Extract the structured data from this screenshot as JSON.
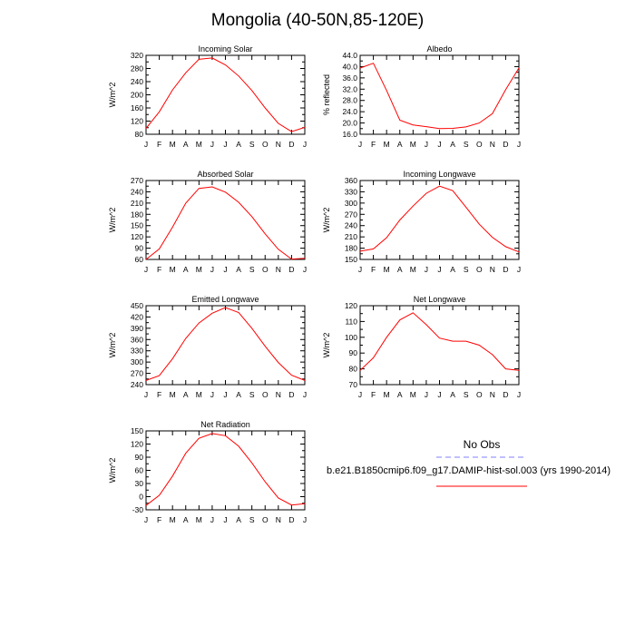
{
  "title": "Mongolia (40-50N,85-120E)",
  "months": [
    "J",
    "F",
    "M",
    "A",
    "M",
    "J",
    "J",
    "A",
    "S",
    "O",
    "N",
    "D",
    "J"
  ],
  "legend": {
    "obs_label": "No Obs",
    "run_label": "b.e21.B1850cmip6.f09_g17.DAMIP-hist-sol.003 (yrs 1990-2014)",
    "obs_color": "#8080ff",
    "run_color": "#ff0000"
  },
  "chart_data": [
    {
      "type": "line",
      "title": "Incoming Solar",
      "ylabel": "W/m^2",
      "ylim": [
        80,
        320
      ],
      "yticks": [
        "80",
        "120",
        "160",
        "200",
        "240",
        "280",
        "320"
      ],
      "series": [
        {
          "color": "#ff0000",
          "values": [
            98,
            148,
            215,
            267,
            308,
            312,
            291,
            257,
            213,
            160,
            113,
            88,
            101
          ]
        }
      ]
    },
    {
      "type": "line",
      "title": "Albedo",
      "ylabel": "% reflected",
      "ylim": [
        16,
        44
      ],
      "yticks": [
        "16.0",
        "20.0",
        "24.0",
        "28.0",
        "32.0",
        "36.0",
        "40.0",
        "44.0"
      ],
      "series": [
        {
          "color": "#ff0000",
          "values": [
            39.5,
            41.2,
            31.5,
            21.0,
            19.3,
            18.7,
            18.0,
            18.1,
            18.6,
            20.0,
            23.3,
            31.8,
            39.5
          ]
        }
      ]
    },
    {
      "type": "line",
      "title": "Absorbed Solar",
      "ylabel": "W/m^2",
      "ylim": [
        60,
        270
      ],
      "yticks": [
        "60",
        "90",
        "120",
        "150",
        "180",
        "210",
        "240",
        "270"
      ],
      "series": [
        {
          "color": "#ff0000",
          "values": [
            60,
            88,
            146,
            210,
            249,
            253,
            239,
            212,
            174,
            128,
            87,
            61,
            63
          ]
        }
      ]
    },
    {
      "type": "line",
      "title": "Incoming Longwave",
      "ylabel": "W/m^2",
      "ylim": [
        150,
        360
      ],
      "yticks": [
        "150",
        "180",
        "210",
        "240",
        "270",
        "300",
        "330",
        "360"
      ],
      "series": [
        {
          "color": "#ff0000",
          "values": [
            172,
            178,
            208,
            255,
            292,
            326,
            345,
            333,
            289,
            244,
            209,
            184,
            170
          ]
        }
      ]
    },
    {
      "type": "line",
      "title": "Emitted Longwave",
      "ylabel": "W/m^2",
      "ylim": [
        240,
        450
      ],
      "yticks": [
        "240",
        "270",
        "300",
        "330",
        "360",
        "390",
        "420",
        "450"
      ],
      "series": [
        {
          "color": "#ff0000",
          "values": [
            251,
            264,
            309,
            363,
            404,
            430,
            445,
            432,
            390,
            342,
            299,
            265,
            251
          ]
        }
      ]
    },
    {
      "type": "line",
      "title": "Net Longwave",
      "ylabel": "W/m^2",
      "ylim": [
        70,
        120
      ],
      "yticks": [
        "70",
        "80",
        "90",
        "100",
        "110",
        "120"
      ],
      "series": [
        {
          "color": "#ff0000",
          "values": [
            79,
            87,
            100,
            111,
            115.5,
            108,
            99.5,
            97.5,
            97.5,
            95,
            89,
            80,
            79
          ]
        }
      ]
    },
    {
      "type": "line",
      "title": "Net Radiation",
      "ylabel": "W/m^2",
      "ylim": [
        -30,
        150
      ],
      "yticks": [
        "-30",
        "0",
        "30",
        "60",
        "90",
        "120",
        "150"
      ],
      "series": [
        {
          "color": "#ff0000",
          "values": [
            -20,
            3,
            47,
            99,
            133,
            144,
            139,
            115,
            77,
            34,
            -3,
            -19,
            -16
          ]
        }
      ]
    }
  ]
}
